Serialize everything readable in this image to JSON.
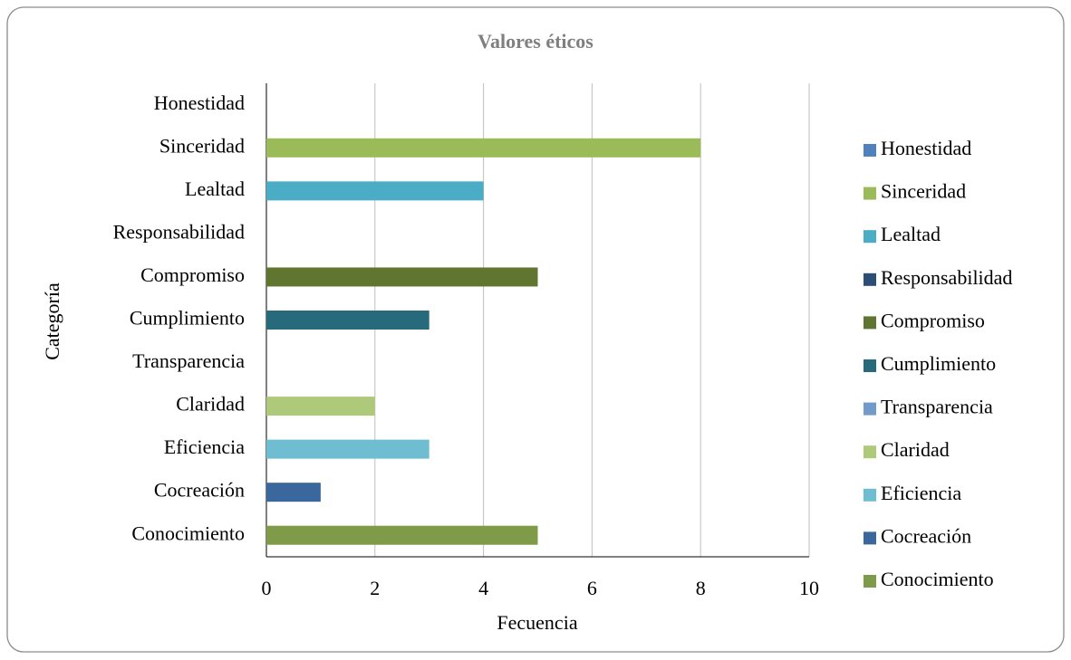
{
  "chart_data": {
    "type": "bar",
    "orientation": "horizontal",
    "title": "Valores éticos",
    "x_label": "Fecuencia",
    "y_label": "Categoría",
    "categories": [
      "Honestidad",
      "Sinceridad",
      "Lealtad",
      "Responsabilidad",
      "Compromiso",
      "Cumplimiento",
      "Transparencia",
      "Claridad",
      "Eficiencia",
      "Cocreación",
      "Conocimiento"
    ],
    "values": [
      0,
      8,
      4,
      0,
      5,
      3,
      0,
      2,
      3,
      1,
      5
    ],
    "colors": [
      "#4f81bd",
      "#9bbb59",
      "#4bacc6",
      "#2c4d75",
      "#5f7530",
      "#276a7c",
      "#729aca",
      "#afc97a",
      "#6fbdd1",
      "#3a679c",
      "#7f9a48"
    ],
    "xlim": [
      0,
      10
    ],
    "xticks": [
      0,
      2,
      4,
      6,
      8,
      10
    ],
    "grid": true,
    "legend": "right"
  }
}
